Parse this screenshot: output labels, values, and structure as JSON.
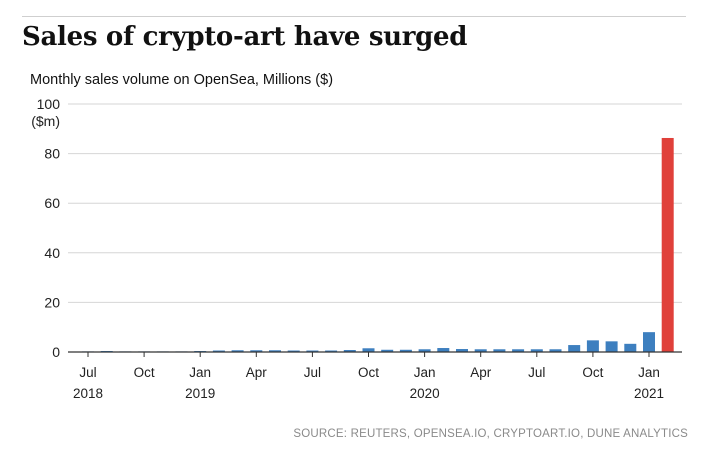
{
  "header": {
    "title": "Sales of crypto-art have surged",
    "subtitle": "Monthly sales volume on OpenSea, Millions ($)"
  },
  "footer": {
    "source": "SOURCE: REUTERS, OPENSEA.IO, CRYPTOART.IO, DUNE ANALYTICS"
  },
  "chart_data": {
    "type": "bar",
    "title": "Sales of crypto-art have surged",
    "subtitle": "Monthly sales volume on OpenSea, Millions ($)",
    "ylabel": "($m)",
    "ylim": [
      0,
      100
    ],
    "yticks": [
      0,
      20,
      40,
      60,
      80,
      100
    ],
    "grid": true,
    "categories": [
      "Jul 2018",
      "Aug 2018",
      "Sep 2018",
      "Oct 2018",
      "Nov 2018",
      "Dec 2018",
      "Jan 2019",
      "Feb 2019",
      "Mar 2019",
      "Apr 2019",
      "May 2019",
      "Jun 2019",
      "Jul 2019",
      "Aug 2019",
      "Sep 2019",
      "Oct 2019",
      "Nov 2019",
      "Dec 2019",
      "Jan 2020",
      "Feb 2020",
      "Mar 2020",
      "Apr 2020",
      "May 2020",
      "Jun 2020",
      "Jul 2020",
      "Aug 2020",
      "Sep 2020",
      "Oct 2020",
      "Nov 2020",
      "Dec 2020",
      "Jan 2021",
      "Feb 2021"
    ],
    "values": [
      0.2,
      0.4,
      0.1,
      0.1,
      0.1,
      0.2,
      0.4,
      0.6,
      0.7,
      0.7,
      0.7,
      0.6,
      0.6,
      0.6,
      0.8,
      1.5,
      0.9,
      0.9,
      1.1,
      1.6,
      1.2,
      1.1,
      1.1,
      1.1,
      1.1,
      1.1,
      2.8,
      4.7,
      4.3,
      3.3,
      8.0,
      86.3
    ],
    "bar_colors": {
      "default": "#3d7fbf",
      "highlight": "#e0403a"
    },
    "highlight_index": 31,
    "xticks": [
      {
        "index": 0,
        "month": "Jul",
        "year": "2018"
      },
      {
        "index": 3,
        "month": "Oct",
        "year": ""
      },
      {
        "index": 6,
        "month": "Jan",
        "year": "2019"
      },
      {
        "index": 9,
        "month": "Apr",
        "year": ""
      },
      {
        "index": 12,
        "month": "Jul",
        "year": ""
      },
      {
        "index": 15,
        "month": "Oct",
        "year": ""
      },
      {
        "index": 18,
        "month": "Jan",
        "year": "2020"
      },
      {
        "index": 21,
        "month": "Apr",
        "year": ""
      },
      {
        "index": 24,
        "month": "Jul",
        "year": ""
      },
      {
        "index": 27,
        "month": "Oct",
        "year": ""
      },
      {
        "index": 30,
        "month": "Jan",
        "year": "2021"
      }
    ]
  }
}
